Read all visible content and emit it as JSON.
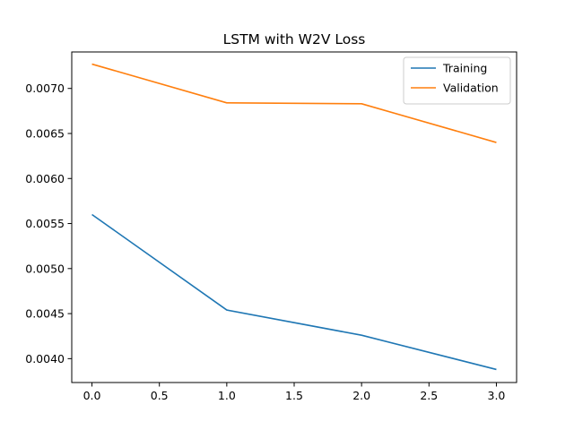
{
  "chart_data": {
    "type": "line",
    "title": "LSTM with W2V Loss",
    "xlabel": "",
    "ylabel": "",
    "x": [
      0,
      1,
      2,
      3
    ],
    "xlim": [
      -0.15,
      3.15
    ],
    "ylim": [
      0.003735,
      0.007405
    ],
    "xticks": [
      0.0,
      0.5,
      1.0,
      1.5,
      2.0,
      2.5,
      3.0
    ],
    "xtick_labels": [
      "0.0",
      "0.5",
      "1.0",
      "1.5",
      "2.0",
      "2.5",
      "3.0"
    ],
    "yticks": [
      0.004,
      0.0045,
      0.005,
      0.0055,
      0.006,
      0.0065,
      0.007
    ],
    "ytick_labels": [
      "0.0040",
      "0.0045",
      "0.0050",
      "0.0055",
      "0.0060",
      "0.0065",
      "0.0070"
    ],
    "grid": false,
    "legend_position": "top-right",
    "series": [
      {
        "name": "Training",
        "color": "#1f77b4",
        "values": [
          0.0056,
          0.00454,
          0.00426,
          0.00388
        ]
      },
      {
        "name": "Validation",
        "color": "#ff7f0e",
        "values": [
          0.00727,
          0.00684,
          0.00683,
          0.0064
        ]
      }
    ]
  }
}
